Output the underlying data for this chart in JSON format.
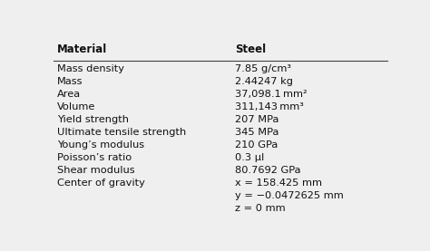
{
  "header_left": "Material",
  "header_right": "Steel",
  "rows": [
    {
      "property": "Mass density",
      "value": "7.85 g/cm³",
      "superscript": ""
    },
    {
      "property": "Mass",
      "value": "2.44247 kg",
      "superscript": ""
    },
    {
      "property": "Area",
      "value": "37,098.1 mm²",
      "superscript": ""
    },
    {
      "property": "Volume",
      "value": "311,143 mm³",
      "superscript": ""
    },
    {
      "property": "Yield strength",
      "value": "207 MPa",
      "superscript": ""
    },
    {
      "property": "Ultimate tensile strength",
      "value": "345 MPa",
      "superscript": ""
    },
    {
      "property": "Young’s modulus",
      "value": "210 GPa",
      "superscript": ""
    },
    {
      "property": "Poisson’s ratio",
      "value": "0.3 μl",
      "superscript": ""
    },
    {
      "property": "Shear modulus",
      "value": "80.7692 GPa",
      "superscript": ""
    },
    {
      "property": "Center of gravity",
      "value": "x = 158.425 mm",
      "superscript": "",
      "extra_lines": [
        "y = −0.0472625 mm",
        "z = 0 mm"
      ]
    }
  ],
  "bg_color": "#efefef",
  "text_color": "#111111",
  "header_line_color": "#444444",
  "font_size": 8.2,
  "header_font_size": 8.5,
  "col_split": 0.535
}
